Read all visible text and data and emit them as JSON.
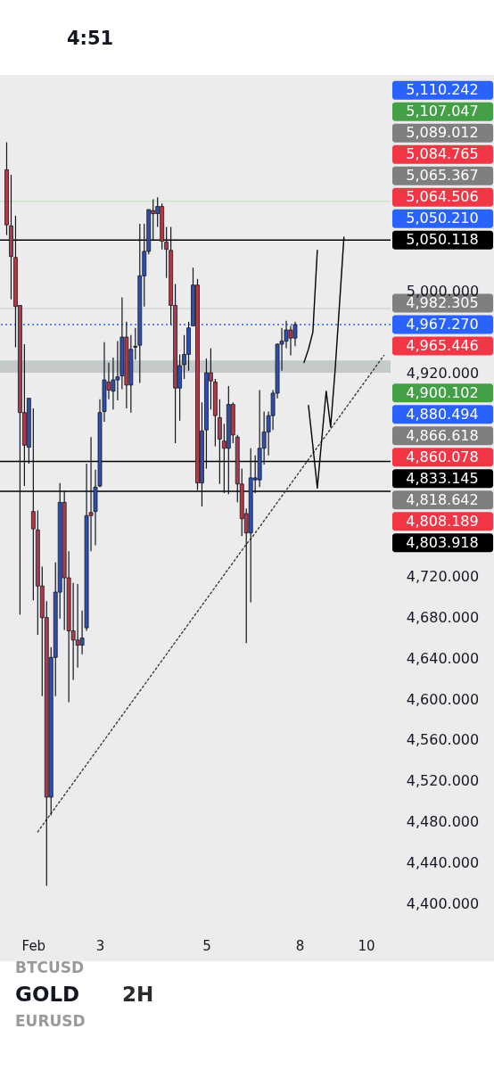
{
  "chart_data": {
    "type": "candlestick",
    "title": "GOLD",
    "subtitle": "2H",
    "annotations": [
      "4:51",
      "BTCUSD",
      "EURUSD",
      "5,110.242",
      "5,107.047",
      "5,089.012",
      "5,084.765",
      "5,065.367",
      "5,064.506",
      "5,050.210",
      "4,982.305",
      "4,965.446",
      "4,900.102",
      "4,880.494",
      "4,866.618",
      "4,860.078",
      "4,818.642",
      "4,808.189",
      "4,803.918"
    ],
    "categories": [
      null,
      null,
      null,
      null,
      null,
      null,
      "Feb",
      null,
      null,
      null,
      null,
      null,
      null,
      null,
      null,
      null,
      null,
      null,
      null,
      null,
      null,
      "3",
      null,
      null,
      null,
      null,
      null,
      null,
      null,
      null,
      null,
      null,
      null,
      null,
      null,
      null,
      null,
      null,
      null,
      null,
      null,
      null,
      null,
      null,
      null,
      "5",
      null,
      null,
      null,
      null,
      null,
      null,
      null,
      null,
      null,
      null,
      null,
      null,
      null,
      null,
      null,
      null,
      null,
      null,
      null,
      null,
      "8",
      null,
      null,
      null,
      null,
      null,
      null,
      null,
      null,
      null,
      null,
      null,
      null,
      null,
      null,
      "10",
      null,
      null,
      null,
      null
    ],
    "ohlc": [
      [
        5119,
        5146,
        5055,
        5065
      ],
      [
        5064,
        5114,
        4992,
        5034
      ],
      [
        5033,
        5074,
        4945,
        4985
      ],
      [
        4986,
        4986,
        4683,
        4881
      ],
      [
        4881,
        4948,
        4809,
        4849
      ],
      [
        4847,
        4895,
        4831,
        4895
      ],
      [
        4784,
        4885,
        4697,
        4767
      ],
      [
        4766,
        4785,
        4663,
        4711
      ],
      [
        4711,
        4730,
        4603,
        4680
      ],
      [
        4680,
        4696,
        4417,
        4504
      ],
      [
        4504,
        4651,
        4486,
        4641
      ],
      [
        4641,
        4734,
        4603,
        4705
      ],
      [
        4705,
        4812,
        4679,
        4793
      ],
      [
        4793,
        4804,
        4668,
        4719
      ],
      [
        4719,
        4745,
        4597,
        4667
      ],
      [
        4667,
        4714,
        4619,
        4658
      ],
      [
        4658,
        4713,
        4631,
        4653
      ],
      [
        4653,
        4687,
        4644,
        4660
      ],
      [
        4670,
        4831,
        4667,
        4780
      ],
      [
        4783,
        4857,
        4745,
        4780
      ],
      [
        4784,
        4825,
        4751,
        4808
      ],
      [
        4809,
        4894,
        4808,
        4881
      ],
      [
        4882,
        4950,
        4872,
        4913
      ],
      [
        4911,
        4930,
        4894,
        4903
      ],
      [
        4902,
        4935,
        4884,
        4913
      ],
      [
        4913,
        4951,
        4893,
        4916
      ],
      [
        4917,
        4994,
        4904,
        4955
      ],
      [
        4955,
        4970,
        4885,
        4908
      ],
      [
        4908,
        4957,
        4881,
        4943
      ],
      [
        4945,
        4964,
        4933,
        4946
      ],
      [
        4947,
        5066,
        4910,
        5015
      ],
      [
        5015,
        5066,
        4985,
        5039
      ],
      [
        5039,
        5080,
        5036,
        5080
      ],
      [
        5079,
        5090,
        5050,
        5076
      ],
      [
        5076,
        5092,
        5063,
        5083
      ],
      [
        5083,
        5086,
        5041,
        5049
      ],
      [
        5048,
        5063,
        5013,
        5041
      ],
      [
        5040,
        5063,
        4967,
        4986
      ],
      [
        4986,
        5007,
        4851,
        4905
      ],
      [
        4905,
        4938,
        4873,
        4927
      ],
      [
        4928,
        4957,
        4914,
        4938
      ],
      [
        4938,
        4970,
        4922,
        4964
      ],
      [
        4966,
        5023,
        4966,
        5006
      ],
      [
        5006,
        5012,
        4805,
        4812
      ],
      [
        4812,
        4891,
        4789,
        4863
      ],
      [
        4864,
        4934,
        4826,
        4920
      ],
      [
        4920,
        4944,
        4884,
        4912
      ],
      [
        4911,
        4914,
        4848,
        4878
      ],
      [
        4876,
        4894,
        4811,
        4855
      ],
      [
        4853,
        4870,
        4802,
        4846
      ],
      [
        4846,
        4907,
        4801,
        4889
      ],
      [
        4889,
        4891,
        4851,
        4859
      ],
      [
        4857,
        4859,
        4793,
        4811
      ],
      [
        4811,
        4826,
        4760,
        4777
      ],
      [
        4782,
        4787,
        4655,
        4763
      ],
      [
        4763,
        4846,
        4695,
        4817
      ],
      [
        4815,
        4839,
        4802,
        4817
      ],
      [
        4815,
        4903,
        4808,
        4846
      ],
      [
        4846,
        4882,
        4830,
        4862
      ],
      [
        4862,
        4882,
        4839,
        4878
      ],
      [
        4878,
        4903,
        4864,
        4900
      ],
      [
        4900,
        4949,
        4895,
        4948
      ],
      [
        4948,
        4964,
        4922,
        4951
      ],
      [
        4951,
        4971,
        4944,
        4962
      ],
      [
        4962,
        4966,
        4937,
        4954
      ],
      [
        4954,
        4970,
        4946,
        4967.27
      ],
      null,
      null,
      null,
      null,
      null,
      null,
      null,
      null,
      null,
      null,
      null,
      null,
      null,
      null,
      null,
      null,
      null,
      null,
      null,
      null
    ],
    "colors": [
      "#b23a48",
      "#b23a48",
      "#b23a48",
      "#b23a48",
      "#b23a48",
      "#2f4fb0",
      "#b23a48",
      "#b23a48",
      "#b23a48",
      "#b23a48",
      "#2f4fb0",
      "#2f4fb0",
      "#2f4fb0",
      "#b23a48",
      "#b23a48",
      "#b23a48",
      "#b23a48",
      "#2f4fb0",
      "#2f4fb0",
      "#b23a48",
      "#2f4fb0",
      "#2f4fb0",
      "#2f4fb0",
      "#b23a48",
      "#2f4fb0",
      "#2f4fb0",
      "#2f4fb0",
      "#b23a48",
      "#2f4fb0",
      "#2f4fb0",
      "#2f4fb0",
      "#2f4fb0",
      "#2f4fb0",
      "#b23a48",
      "#2f4fb0",
      "#b23a48",
      "#b23a48",
      "#b23a48",
      "#b23a48",
      "#2f4fb0",
      "#2f4fb0",
      "#2f4fb0",
      "#2f4fb0",
      "#b23a48",
      "#2f4fb0",
      "#2f4fb0",
      "#b23a48",
      "#b23a48",
      "#b23a48",
      "#b23a48",
      "#2f4fb0",
      "#b23a48",
      "#b23a48",
      "#b23a48",
      "#b23a48",
      "#2f4fb0",
      "#2f4fb0",
      "#2f4fb0",
      "#2f4fb0",
      "#2f4fb0",
      "#2f4fb0",
      "#2f4fb0",
      "#2f4fb0",
      "#2f4fb0",
      "#b23a48",
      "#2f4fb0",
      null,
      null,
      null,
      null,
      null,
      null,
      null,
      null,
      null,
      null,
      null,
      null,
      null,
      null,
      null,
      null,
      null,
      null,
      null,
      null
    ],
    "series": [
      {
        "type": "line",
        "color": "#3a3a3a",
        "line_style": "dotted",
        "values": [
          null,
          null,
          null,
          null,
          null,
          null,
          null,
          4470,
          4476,
          4482,
          4488,
          4494,
          4500,
          4506,
          4512,
          4518,
          4524,
          4530,
          4536,
          4542,
          4548,
          4554,
          4560,
          4566,
          4572,
          4578,
          4584,
          4590,
          4596,
          4602,
          4608,
          4614,
          4620,
          4626,
          4632,
          4638,
          4644,
          4650,
          4656,
          4662,
          4668,
          4674,
          4680,
          4686,
          4692,
          4698,
          4704,
          4710,
          4716,
          4722,
          4728,
          4734,
          4740,
          4746,
          4752,
          4757,
          4763,
          4769,
          4775,
          4781,
          4787,
          4793,
          4799,
          4805,
          4811,
          4817,
          4823,
          4829,
          4835,
          4841,
          4847,
          4853,
          4859,
          4865,
          4871,
          4877,
          4883,
          4889,
          4895,
          4901,
          4907,
          4913,
          4919,
          4925,
          4931,
          4937
        ]
      },
      {
        "type": "line",
        "color": "#000000",
        "line_style": "solid",
        "values": [
          null,
          null,
          null,
          null,
          null,
          null,
          null,
          null,
          null,
          null,
          null,
          null,
          null,
          null,
          null,
          null,
          null,
          null,
          null,
          null,
          null,
          null,
          null,
          null,
          null,
          null,
          null,
          null,
          null,
          null,
          null,
          null,
          null,
          null,
          null,
          null,
          null,
          null,
          null,
          null,
          null,
          null,
          null,
          null,
          null,
          null,
          null,
          null,
          null,
          null,
          null,
          null,
          null,
          null,
          null,
          null,
          null,
          null,
          null,
          null,
          null,
          null,
          null,
          null,
          null,
          null,
          null,
          4930,
          4943,
          4960,
          5040,
          null,
          null,
          null,
          null,
          null,
          null,
          null,
          null,
          null,
          null,
          null,
          null,
          null,
          null,
          null
        ]
      },
      {
        "type": "line",
        "color": "#000000",
        "line_style": "solid",
        "values": [
          null,
          null,
          null,
          null,
          null,
          null,
          null,
          null,
          null,
          null,
          null,
          null,
          null,
          null,
          null,
          null,
          null,
          null,
          null,
          null,
          null,
          null,
          null,
          null,
          null,
          null,
          null,
          null,
          null,
          null,
          null,
          null,
          null,
          null,
          null,
          null,
          null,
          null,
          null,
          null,
          null,
          null,
          null,
          null,
          null,
          null,
          null,
          null,
          null,
          null,
          null,
          null,
          null,
          null,
          null,
          null,
          null,
          null,
          null,
          null,
          null,
          null,
          null,
          null,
          null,
          null,
          null,
          null,
          4888,
          4848,
          4807,
          4855,
          4902,
          4867,
          4922,
          4987,
          5053,
          null,
          null,
          null,
          null,
          null,
          null,
          null,
          null,
          null
        ]
      }
    ],
    "bands": [
      {
        "axis": "y",
        "from": 4920,
        "to": 4932,
        "color": "#c4cac9"
      }
    ],
    "ref_lines": [
      {
        "axis": "y",
        "value": 5088,
        "color": "#c9e4c9",
        "line_style": "solid"
      },
      {
        "axis": "y",
        "value": 4983,
        "color": "#d6d6d6",
        "line_style": "solid"
      },
      {
        "axis": "y",
        "value": 5050.118,
        "label": "5,050.118",
        "color": "#000000",
        "line_style": "solid"
      },
      {
        "axis": "y",
        "value": 4967.27,
        "label": "4,967.270",
        "color": "#2962ff",
        "line_style": "dotted"
      },
      {
        "axis": "y",
        "value": 4833.145,
        "label": "4,833.145",
        "color": "#000000",
        "line_style": "solid"
      },
      {
        "axis": "y",
        "value": 4803.918,
        "color": "#000000",
        "line_style": "solid"
      }
    ],
    "ylim": [
      4400,
      5212
    ],
    "yticks": [
      {
        "value": 4400,
        "label": "4,400.000"
      },
      {
        "value": 4440,
        "label": "4,440.000"
      },
      {
        "value": 4480,
        "label": "4,480.000"
      },
      {
        "value": 4520,
        "label": "4,520.000"
      },
      {
        "value": 4560,
        "label": "4,560.000"
      },
      {
        "value": 4600,
        "label": "4,600.000"
      },
      {
        "value": 4640,
        "label": "4,640.000"
      },
      {
        "value": 4680,
        "label": "4,680.000"
      },
      {
        "value": 4720,
        "label": "4,720.000"
      },
      {
        "value": 4920,
        "label": "4,920.000"
      },
      {
        "value": 5000,
        "label": "5,000.000"
      }
    ],
    "grid": false
  }
}
